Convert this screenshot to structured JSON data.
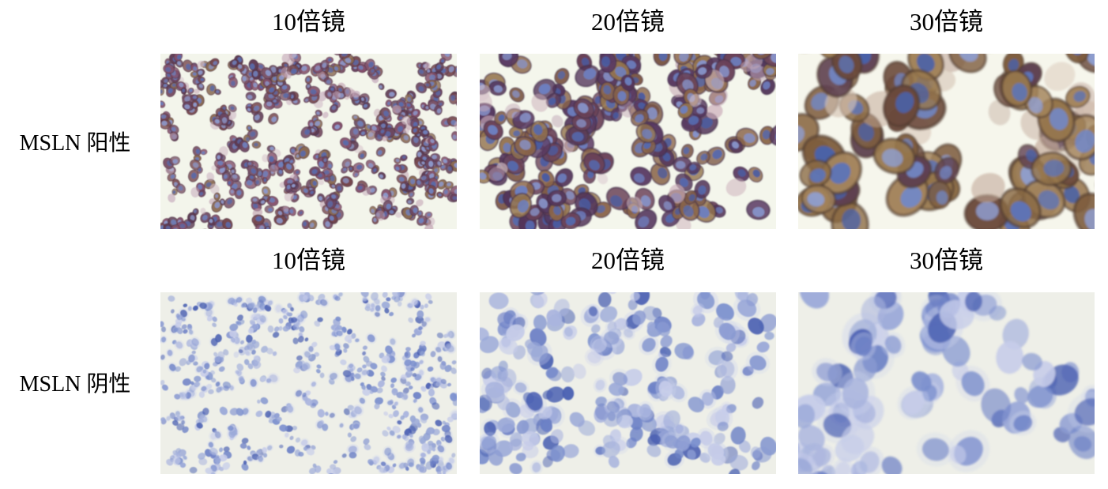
{
  "figure": {
    "rows": [
      {
        "label": "MSLN 阳性",
        "col_labels": [
          "10倍镜",
          "20倍镜",
          "30倍镜"
        ],
        "panels": [
          {
            "name": "positive-10x",
            "stain": "positive",
            "palette": "pos10",
            "seed": 101,
            "cell_count": 620,
            "cell_radius": 5.2,
            "cluster_max": 5,
            "blur": 0.45
          },
          {
            "name": "positive-20x",
            "stain": "positive",
            "palette": "pos20",
            "seed": 202,
            "cell_count": 260,
            "cell_radius": 10.5,
            "cluster_max": 4,
            "blur": 0.8
          },
          {
            "name": "positive-30x",
            "stain": "positive",
            "palette": "pos30",
            "seed": 303,
            "cell_count": 95,
            "cell_radius": 19,
            "cluster_max": 3,
            "blur": 1.2
          }
        ]
      },
      {
        "label": "MSLN 阴性",
        "col_labels": [
          "10倍镜",
          "20倍镜",
          "30倍镜"
        ],
        "panels": [
          {
            "name": "negative-10x",
            "stain": "negative",
            "palette": "neg",
            "seed": 404,
            "cell_count": 650,
            "cell_radius": 4.2,
            "cluster_max": 3,
            "blur": 0.45
          },
          {
            "name": "negative-20x",
            "stain": "negative",
            "palette": "neg",
            "seed": 505,
            "cell_count": 235,
            "cell_radius": 9.5,
            "cluster_max": 2,
            "blur": 0.85
          },
          {
            "name": "negative-30x",
            "stain": "negative",
            "palette": "neg",
            "seed": 606,
            "cell_count": 85,
            "cell_radius": 17,
            "cluster_max": 2,
            "blur": 1.3
          }
        ]
      }
    ],
    "palettes": {
      "pos10": {
        "bg": "#f3f5eb",
        "membrane": [
          "#6b4560",
          "#5d3a52",
          "#7b5468",
          "#83506a",
          "#8a6a52",
          "#75474e"
        ],
        "nuclei": [
          "#5b6aa8",
          "#7080ba",
          "#8d97c8"
        ],
        "ghost": [
          "#c5a8bb",
          "#d3bdc8",
          "#c0a0b0"
        ],
        "stroke": "#4a3146"
      },
      "pos20": {
        "bg": "#f4f6ec",
        "membrane": [
          "#7d5a48",
          "#8a654a",
          "#6a4258",
          "#593a62",
          "#94744e",
          "#53355a"
        ],
        "nuclei": [
          "#5669ad",
          "#6d7fc0",
          "#4b5ca0",
          "#8793c9"
        ],
        "ghost": [
          "#cbadb9",
          "#d8c3cb",
          "#bfa3b3"
        ],
        "stroke": "#43304a"
      },
      "pos30": {
        "bg": "#f6f6ec",
        "membrane": [
          "#8a6a44",
          "#96764c",
          "#7d5c3e",
          "#6b4a3c",
          "#5e4050",
          "#a3845c"
        ],
        "nuclei": [
          "#5d74b8",
          "#7288c6",
          "#4a62a8",
          "#8f9fd2"
        ],
        "ghost": [
          "#c9b4a8",
          "#d6c4b4",
          "#c2a898"
        ],
        "stroke": "#4f3a30"
      },
      "neg": {
        "bg": "#eeefe8",
        "nuclei": [
          "#4a60b2",
          "#6d81c6",
          "#8b9bd2",
          "#a9b4de",
          "#c6cce9",
          "#7b8fce",
          "#9aa8d8"
        ],
        "halo": "#cdd3ec"
      }
    }
  }
}
